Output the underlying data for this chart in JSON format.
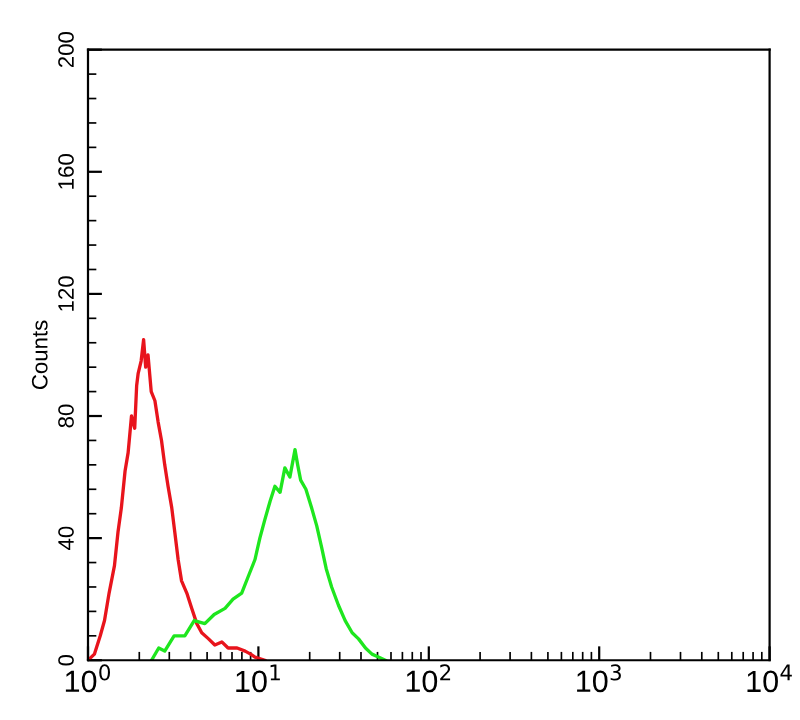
{
  "chart_data": {
    "type": "line",
    "ylabel": "Counts",
    "log": "x",
    "grid": false,
    "marker": "none",
    "line_style": "solid",
    "xlim": [
      1,
      10000
    ],
    "xticks": [
      {
        "value": 1,
        "label": "10$^{0}$"
      },
      {
        "value": 10,
        "label": "10$^{1}$"
      },
      {
        "value": 100,
        "label": "10$^{2}$"
      },
      {
        "value": 1000,
        "label": "10$^{3}$"
      },
      {
        "value": 10000,
        "label": "10$^{4}$"
      }
    ],
    "ylim": [
      0,
      200
    ],
    "yticks": [
      0,
      40,
      80,
      120,
      160,
      200
    ],
    "series": [
      {
        "color": "#e8141c",
        "x": [
          1.0,
          1.09,
          1.18,
          1.25,
          1.33,
          1.43,
          1.5,
          1.57,
          1.65,
          1.72,
          1.8,
          1.88,
          1.93,
          1.97,
          2.05,
          2.12,
          2.18,
          2.25,
          2.35,
          2.47,
          2.58,
          2.7,
          2.82,
          2.95,
          3.1,
          3.23,
          3.38,
          3.54,
          3.8,
          4.06,
          4.35,
          4.65,
          5.1,
          5.55,
          6.1,
          6.64,
          7.5,
          8.36,
          9.0,
          9.55,
          10.9
        ],
        "values": [
          0,
          2,
          8,
          13,
          22,
          31,
          42,
          50,
          62,
          68,
          80,
          76,
          90,
          94,
          98,
          105,
          96,
          100,
          88,
          85,
          78,
          72,
          64,
          57,
          50,
          42,
          33,
          26,
          22,
          17,
          12,
          9,
          7,
          5,
          6,
          4,
          4,
          3,
          2,
          1,
          0
        ]
      },
      {
        "color": "#1ee61e",
        "x": [
          2.36,
          2.6,
          2.82,
          3.2,
          3.7,
          4.2,
          4.85,
          5.5,
          6.37,
          7.1,
          7.98,
          8.8,
          9.55,
          10.2,
          10.9,
          11.7,
          12.5,
          13.4,
          14.3,
          15.3,
          16.4,
          17.0,
          17.7,
          19.0,
          20.5,
          22.0,
          23.5,
          25.0,
          26.9,
          29.5,
          32.3,
          35.5,
          38.7,
          42.5,
          46.4,
          51.0,
          55.6
        ],
        "values": [
          0,
          4,
          3,
          8,
          8,
          13,
          12,
          15,
          17,
          20,
          22,
          28,
          33,
          40,
          46,
          52,
          57,
          55,
          63,
          60,
          69,
          64,
          59,
          56,
          50,
          44,
          37,
          30,
          24,
          18,
          13,
          9,
          7,
          4,
          2,
          1,
          0
        ]
      }
    ]
  }
}
